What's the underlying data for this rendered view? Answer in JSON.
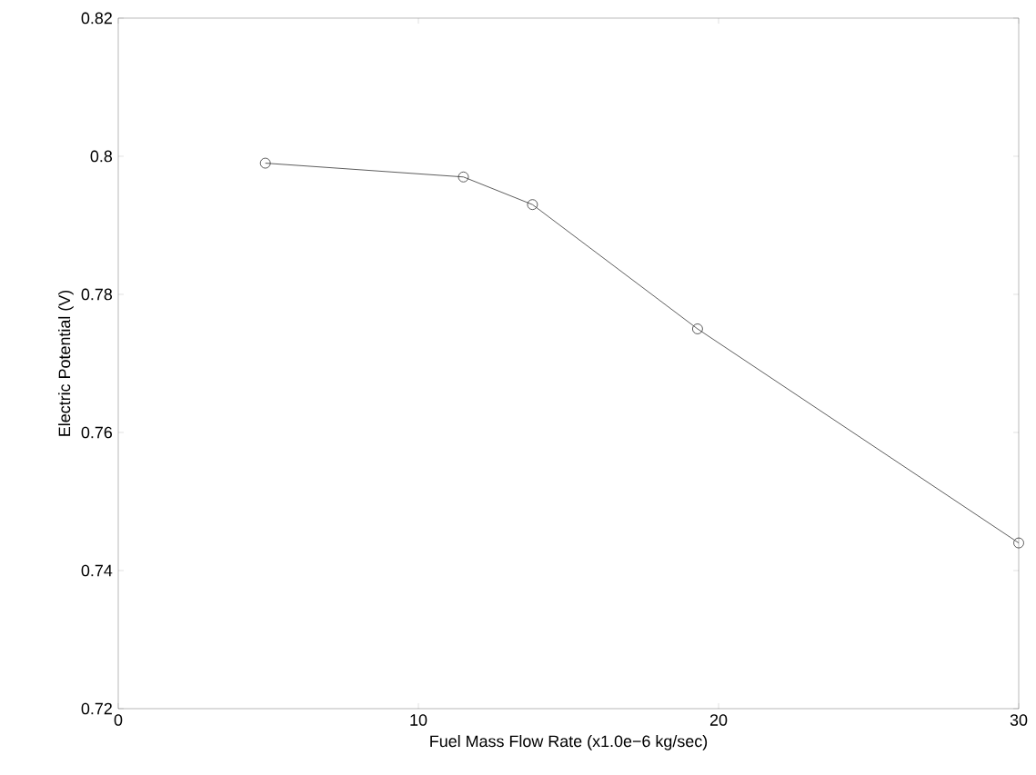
{
  "chart_data": {
    "type": "line",
    "xlabel": "Fuel Mass Flow Rate (x1.0e−6 kg/sec)",
    "ylabel": "Electric Potential (V)",
    "x": [
      4.9,
      11.5,
      13.8,
      19.3,
      30
    ],
    "series": [
      {
        "color": "#333333",
        "values": [
          0.799,
          0.797,
          0.793,
          0.775,
          0.744
        ]
      }
    ],
    "xlim": [
      0,
      30
    ],
    "xticks": [
      0,
      10,
      20,
      30
    ],
    "ylim": [
      0.72,
      0.82
    ],
    "yticks": [
      0.72,
      0.74,
      0.76,
      0.78,
      0.8,
      0.82
    ],
    "marker": "circle",
    "line_style": "solid",
    "grid": false
  }
}
